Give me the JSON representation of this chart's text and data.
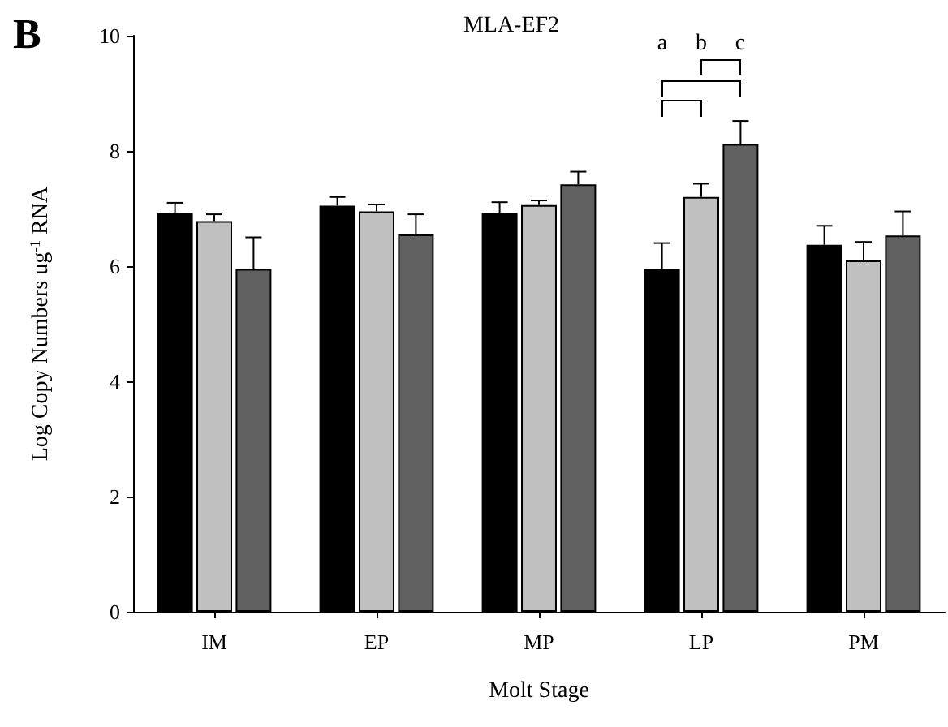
{
  "chart_data": {
    "type": "bar",
    "title": "MLA-EF2",
    "xlabel": "Molt Stage",
    "ylabel": "Log Copy Numbers ug$^{-1}$ RNA",
    "categories": [
      "IM",
      "EP",
      "MP",
      "LP",
      "PM"
    ],
    "series": [
      {
        "color": "#000000",
        "values": [
          6.93,
          7.05,
          6.93,
          5.95,
          6.37
        ],
        "errors": [
          [
            6.93,
            7.1
          ],
          [
            7.05,
            7.2
          ],
          [
            6.93,
            7.11
          ],
          [
            5.95,
            6.4
          ],
          [
            6.37,
            6.7
          ]
        ]
      },
      {
        "color": "#c0c0c0",
        "values": [
          6.78,
          6.95,
          7.06,
          7.2,
          6.1
        ],
        "errors": [
          [
            6.78,
            6.9
          ],
          [
            6.95,
            7.07
          ],
          [
            7.06,
            7.14
          ],
          [
            7.2,
            7.43
          ],
          [
            6.1,
            6.42
          ]
        ]
      },
      {
        "color": "#606060",
        "values": [
          5.95,
          6.55,
          7.42,
          8.12,
          6.53
        ],
        "errors": [
          [
            5.95,
            6.5
          ],
          [
            6.55,
            6.9
          ],
          [
            7.42,
            7.64
          ],
          [
            8.12,
            8.52
          ],
          [
            6.53,
            6.95
          ]
        ]
      }
    ],
    "ylim": [
      0,
      10
    ],
    "yticks": [
      0,
      2,
      4,
      6,
      8,
      10
    ],
    "grid": false,
    "annotations": [
      "B",
      "a",
      "b",
      "c"
    ]
  }
}
